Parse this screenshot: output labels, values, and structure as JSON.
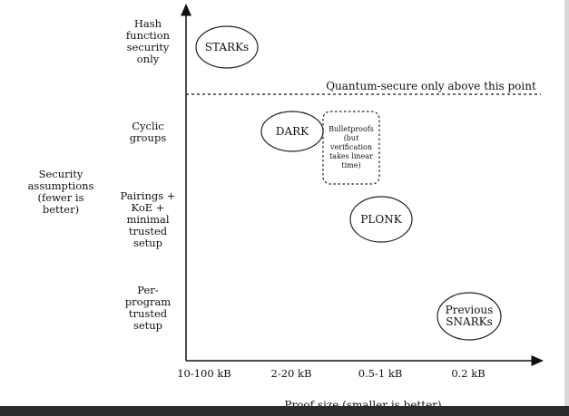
{
  "diagram": {
    "y_axis": {
      "title": "Security assumptions (fewer is better)",
      "levels": [
        "Hash function security only",
        "Cyclic groups",
        "Pairings + KoE + minimal trusted setup",
        "Per-program trusted setup"
      ]
    },
    "x_axis": {
      "title": "Proof size (smaller is better)",
      "ticks": [
        "10-100 kB",
        "2-20 kB",
        "0.5-1 kB",
        "0.2 kB"
      ]
    },
    "threshold_label": "Quantum-secure only above this point",
    "nodes": [
      {
        "id": "starks",
        "label": "STARKs"
      },
      {
        "id": "dark",
        "label": "DARK"
      },
      {
        "id": "bulletproofs",
        "label": "Bulletproofs (but verification takes linear time)"
      },
      {
        "id": "plonk",
        "label": "PLONK"
      },
      {
        "id": "previous-snarks",
        "label": "Previous SNARKs"
      }
    ]
  }
}
